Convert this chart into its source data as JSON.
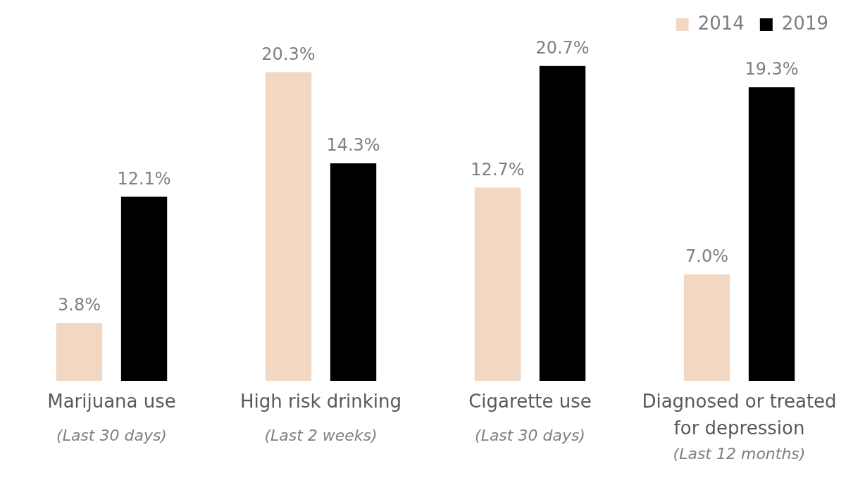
{
  "chart_data": {
    "type": "bar",
    "categories": [
      "Marijuana use\n(Last 30 days)",
      "High risk drinking\n(Last 2 weeks)",
      "Cigarette use\n(Last 30 days)",
      "Diagnosed or treated\nfor depression\n(Last 12 months)"
    ],
    "series": [
      {
        "name": "2014",
        "color": "#f2d7c2",
        "values": [
          3.8,
          20.3,
          12.7,
          7.0
        ],
        "value_labels": [
          "3.8%",
          "20.3%",
          "12.7%",
          "7.0%"
        ]
      },
      {
        "name": "2019",
        "color": "#000000",
        "values": [
          12.1,
          14.3,
          20.7,
          19.3
        ],
        "value_labels": [
          "12.1%",
          "14.3%",
          "20.7%",
          "19.3%"
        ]
      }
    ],
    "legend": "top right",
    "grid": false
  }
}
